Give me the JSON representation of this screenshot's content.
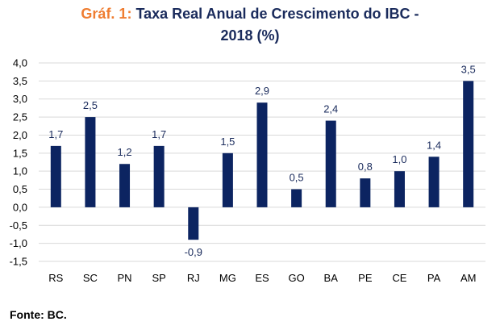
{
  "title": {
    "prefix": "Gráf. 1:",
    "line1": "Taxa Real Anual de Crescimento do IBC -",
    "line2": "2018 (%)"
  },
  "source": "Fonte: BC.",
  "colors": {
    "bar": "#0c2461",
    "title_prefix": "#ef7d31",
    "title": "#1a2b5c",
    "grid": "#d9d9d9"
  },
  "chart_data": {
    "type": "bar",
    "categories": [
      "RS",
      "SC",
      "PN",
      "SP",
      "RJ",
      "MG",
      "ES",
      "GO",
      "BA",
      "PE",
      "CE",
      "PA",
      "AM"
    ],
    "values": [
      1.7,
      2.5,
      1.2,
      1.7,
      -0.9,
      1.5,
      2.9,
      0.5,
      2.4,
      0.8,
      1.0,
      1.4,
      3.5
    ],
    "value_labels": [
      "1,7",
      "2,5",
      "1,2",
      "1,7",
      "-0,9",
      "1,5",
      "2,9",
      "0,5",
      "2,4",
      "0,8",
      "1,0",
      "1,4",
      "3,5"
    ],
    "yticks": [
      4.0,
      3.5,
      3.0,
      2.5,
      2.0,
      1.5,
      1.0,
      0.5,
      0.0,
      -0.5,
      -1.0,
      -1.5
    ],
    "ytick_labels": [
      "4,0",
      "3,5",
      "3,0",
      "2,5",
      "2,0",
      "1,5",
      "1,0",
      "0,5",
      "0,0",
      "-0,5",
      "-1,0",
      "-1,5"
    ],
    "ylim": [
      -1.5,
      4.0
    ],
    "grid": true,
    "legend": "none"
  }
}
